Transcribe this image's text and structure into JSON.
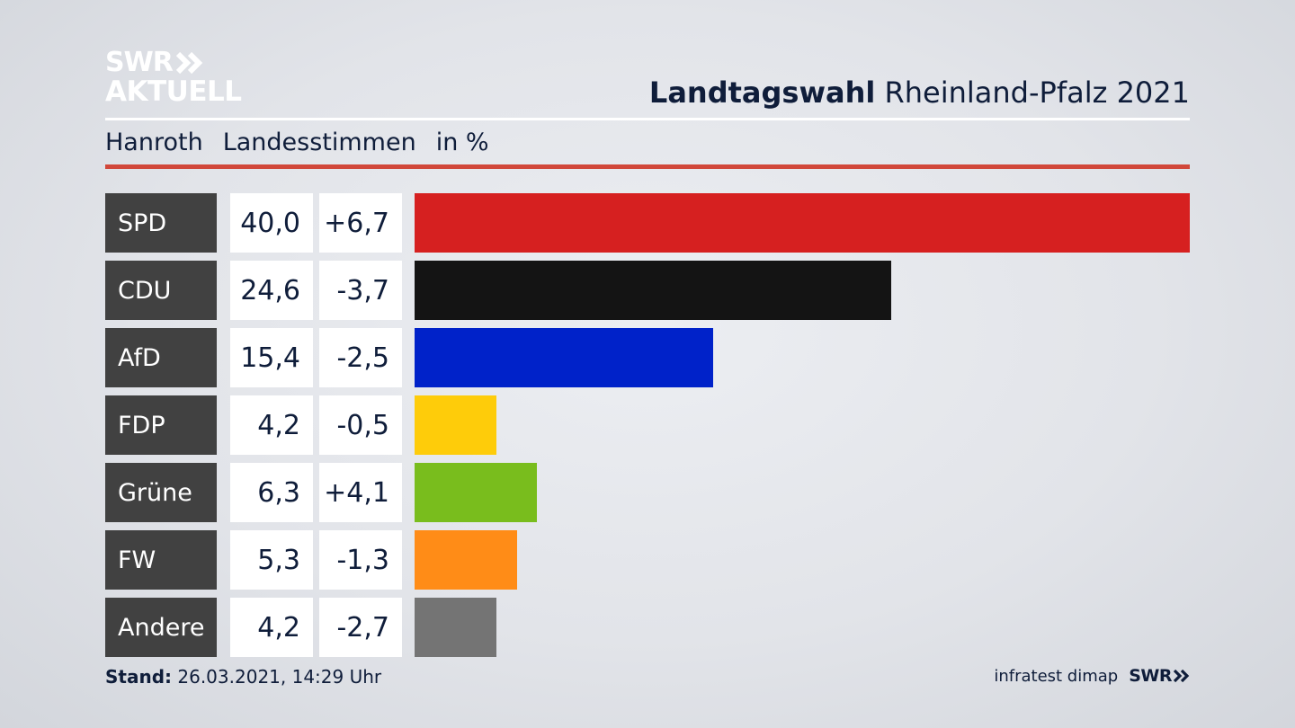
{
  "brand": {
    "line1": "SWR",
    "line2": "AKTUELL"
  },
  "header": {
    "title_bold": "Landtagswahl",
    "title_rest": "Rheinland-Pfalz 2021"
  },
  "subheader": {
    "region": "Hanroth",
    "measure": "Landesstimmen",
    "unit": "in %"
  },
  "chart_data": {
    "type": "bar",
    "orientation": "horizontal",
    "categories": [
      "SPD",
      "CDU",
      "AfD",
      "FDP",
      "Grüne",
      "FW",
      "Andere"
    ],
    "values": [
      40.0,
      24.6,
      15.4,
      4.2,
      6.3,
      5.3,
      4.2
    ],
    "value_labels": [
      "40,0",
      "24,6",
      "15,4",
      "4,2",
      "6,3",
      "5,3",
      "4,2"
    ],
    "changes": [
      6.7,
      -3.7,
      -2.5,
      -0.5,
      4.1,
      -1.3,
      -2.7
    ],
    "change_labels": [
      "+6,7",
      "-3,7",
      "-2,5",
      "-0,5",
      "+4,1",
      "-1,3",
      "-2,7"
    ],
    "colors": [
      "#d62020",
      "#141414",
      "#0022c9",
      "#fecc0a",
      "#79bd1d",
      "#ff8c17",
      "#747474"
    ],
    "xlim": [
      0,
      40.0
    ]
  },
  "footer": {
    "stand_label": "Stand:",
    "stand_value": "26.03.2021, 14:29 Uhr",
    "source": "infratest dimap",
    "brand": "SWR"
  }
}
